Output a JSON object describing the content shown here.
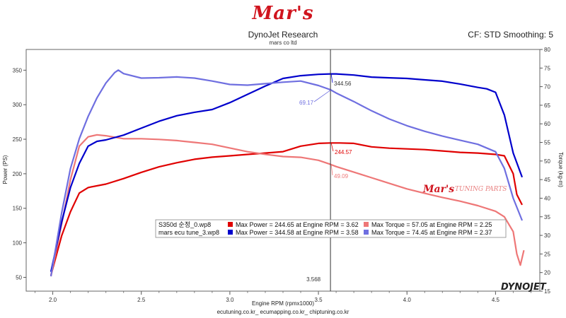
{
  "header": {
    "logo": "Mar's",
    "title": "DynoJet Research",
    "subtitle": "mars co ltd",
    "cf_label": "CF: STD Smoothing: 5"
  },
  "footer": "ecutuning.co.kr_ ecumapping.co.kr_ chiptuning.co.kr",
  "watermark": {
    "logo": "Mar's",
    "text": "TUNING PARTS"
  },
  "brand": "DYNOJET",
  "colors": {
    "stock_power": "#e00000",
    "stock_torque": "#ee7777",
    "tuned_power": "#0000cc",
    "tuned_torque": "#6f6fe0"
  },
  "chart_data": {
    "type": "line",
    "xlabel": "Engine RPM (rpmx1000)",
    "ylabel": "Power (PS)",
    "y2label": "Torque (kg-m)",
    "xlim": [
      1.85,
      4.75
    ],
    "ylim": [
      30,
      380
    ],
    "y2lim": [
      15,
      80
    ],
    "xticks": [
      "2.0",
      "2.5",
      "3.0",
      "3.5",
      "4.0",
      "4.5"
    ],
    "yticks": [
      "50",
      "100",
      "150",
      "200",
      "250",
      "300",
      "350"
    ],
    "y2ticks": [
      "15",
      "20",
      "25",
      "30",
      "35",
      "40",
      "45",
      "50",
      "55",
      "60",
      "65",
      "70",
      "75",
      "80"
    ],
    "cursor_rpm": 3.568,
    "cursor_label": "3.568",
    "cursor_values": {
      "tuned_power": "344.56",
      "tuned_torque": "69.17",
      "stock_power": "244.57",
      "stock_torque": "49.09"
    },
    "legend": [
      {
        "name": "S350d 순정_0.wp8",
        "power_text": "Max Power = 244.65 at Engine RPM = 3.62",
        "torque_text": "Max Torque = 57.05 at Engine RPM = 2.25"
      },
      {
        "name": "mars ecu tune_3.wp8",
        "power_text": "Max Power = 344.58 at Engine RPM = 3.58",
        "torque_text": "Max Torque = 74.45 at Engine RPM = 2.37"
      }
    ],
    "series": [
      {
        "name": "S350d 순정_0.wp8",
        "measure": "power",
        "axis": "left",
        "colorKey": "stock_power",
        "x": [
          1.99,
          2.05,
          2.1,
          2.15,
          2.2,
          2.3,
          2.4,
          2.5,
          2.6,
          2.7,
          2.8,
          2.9,
          3.0,
          3.1,
          3.2,
          3.3,
          3.4,
          3.5,
          3.568,
          3.62,
          3.7,
          3.8,
          3.9,
          4.0,
          4.1,
          4.2,
          4.3,
          4.4,
          4.5,
          4.55,
          4.6,
          4.62,
          4.65
        ],
        "y": [
          53,
          110,
          145,
          172,
          180,
          185,
          193,
          202,
          210,
          216,
          221,
          224,
          226,
          228,
          230,
          232,
          240,
          244,
          244.57,
          244.65,
          244,
          239,
          237,
          236,
          235,
          233,
          231,
          230,
          228,
          226,
          200,
          170,
          155
        ]
      },
      {
        "name": "S350d 순정_0.wp8",
        "measure": "torque",
        "axis": "right",
        "colorKey": "stock_torque",
        "x": [
          1.99,
          2.05,
          2.1,
          2.15,
          2.2,
          2.25,
          2.3,
          2.4,
          2.5,
          2.6,
          2.7,
          2.8,
          2.9,
          3.0,
          3.1,
          3.2,
          3.3,
          3.4,
          3.5,
          3.568,
          3.6,
          3.7,
          3.8,
          3.9,
          4.0,
          4.1,
          4.2,
          4.3,
          4.4,
          4.5,
          4.55,
          4.6,
          4.62,
          4.64,
          4.66
        ],
        "y": [
          19,
          33,
          45,
          54,
          56.5,
          57.05,
          56.8,
          56,
          56,
          55.8,
          55.5,
          55,
          54.5,
          53.5,
          52.5,
          51.8,
          51.2,
          51,
          50.2,
          49.09,
          48.5,
          47,
          45.5,
          44,
          42.5,
          41.3,
          40.2,
          39.2,
          38,
          36.5,
          35,
          31,
          25,
          22,
          26
        ]
      },
      {
        "name": "mars ecu tune_3.wp8",
        "measure": "power",
        "axis": "left",
        "colorKey": "tuned_power",
        "x": [
          1.99,
          2.05,
          2.1,
          2.15,
          2.2,
          2.25,
          2.3,
          2.4,
          2.5,
          2.6,
          2.7,
          2.8,
          2.9,
          3.0,
          3.1,
          3.2,
          3.3,
          3.4,
          3.5,
          3.568,
          3.6,
          3.7,
          3.8,
          3.9,
          4.0,
          4.1,
          4.2,
          4.3,
          4.4,
          4.45,
          4.5,
          4.55,
          4.6,
          4.65
        ],
        "y": [
          58,
          130,
          180,
          215,
          240,
          247,
          249,
          256,
          266,
          276,
          284,
          289,
          293,
          303,
          315,
          327,
          338,
          342,
          344,
          344.56,
          344.58,
          343,
          340,
          339,
          338,
          336,
          334,
          330,
          325,
          323,
          318,
          285,
          230,
          195
        ]
      },
      {
        "name": "mars ecu tune_3.wp8",
        "measure": "torque",
        "axis": "right",
        "colorKey": "tuned_torque",
        "x": [
          1.99,
          2.05,
          2.1,
          2.15,
          2.2,
          2.25,
          2.3,
          2.35,
          2.37,
          2.4,
          2.5,
          2.6,
          2.7,
          2.8,
          2.9,
          3.0,
          3.1,
          3.2,
          3.3,
          3.4,
          3.5,
          3.568,
          3.6,
          3.7,
          3.8,
          3.9,
          4.0,
          4.1,
          4.2,
          4.3,
          4.4,
          4.5,
          4.55,
          4.6,
          4.65
        ],
        "y": [
          19,
          36,
          48,
          56,
          62,
          67,
          71,
          73.8,
          74.45,
          73.5,
          72.3,
          72.4,
          72.6,
          72.3,
          71.5,
          70.6,
          70.4,
          70.8,
          71.2,
          71.5,
          70.3,
          69.17,
          68.3,
          66,
          63.5,
          61.3,
          59.5,
          58,
          56.7,
          55.6,
          54.5,
          52.5,
          48,
          40,
          34
        ]
      }
    ]
  }
}
